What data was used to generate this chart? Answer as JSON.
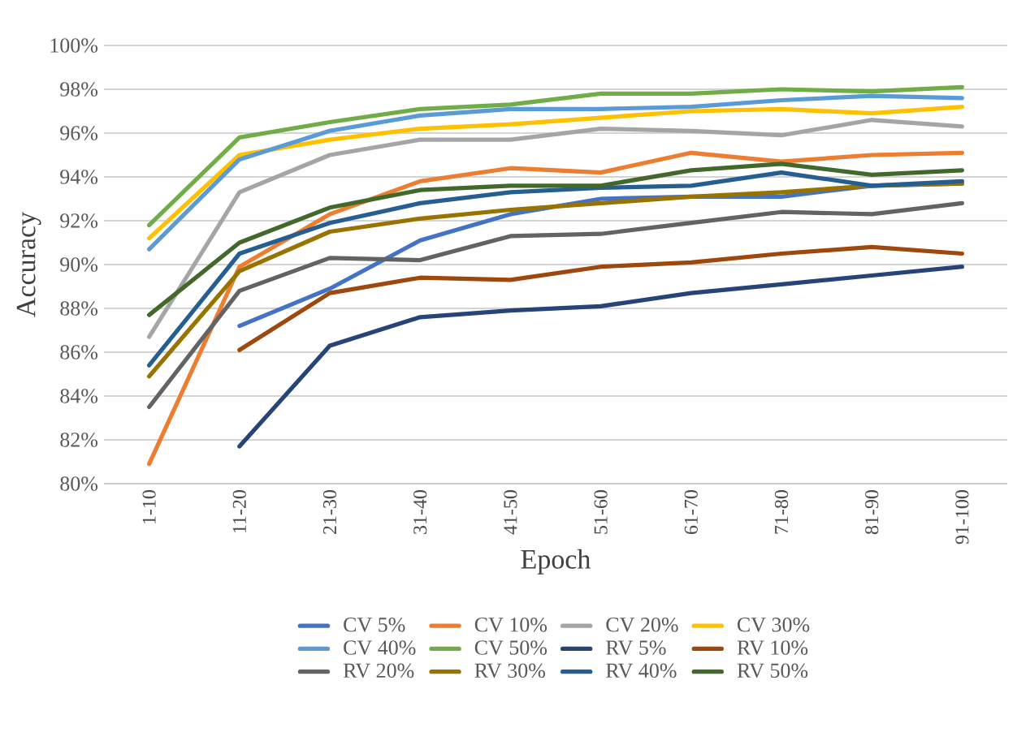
{
  "chart_data": {
    "type": "line",
    "xlabel": "Epoch",
    "ylabel": "Accuracy",
    "categories": [
      "1-10",
      "11-20",
      "21-30",
      "31-40",
      "41-50",
      "51-60",
      "61-70",
      "71-80",
      "81-90",
      "91-100"
    ],
    "ylim": [
      80,
      100
    ],
    "yticks": [
      {
        "value": 80,
        "label": "80%"
      },
      {
        "value": 82,
        "label": "82%"
      },
      {
        "value": 84,
        "label": "84%"
      },
      {
        "value": 86,
        "label": "86%"
      },
      {
        "value": 88,
        "label": "88%"
      },
      {
        "value": 90,
        "label": "90%"
      },
      {
        "value": 92,
        "label": "92%"
      },
      {
        "value": 94,
        "label": "94%"
      },
      {
        "value": 96,
        "label": "96%"
      },
      {
        "value": 98,
        "label": "98%"
      },
      {
        "value": 100,
        "label": "100%"
      }
    ],
    "grid": "y",
    "legend": "bottom",
    "marker": "none",
    "line_style": "solid",
    "series": [
      {
        "name": "CV 5%",
        "color": "#4472c4",
        "values": [
          null,
          87.2,
          88.9,
          91.1,
          92.3,
          93.0,
          93.1,
          93.1,
          93.6,
          93.7
        ]
      },
      {
        "name": "CV 10%",
        "color": "#ed7d31",
        "values": [
          80.9,
          89.9,
          92.3,
          93.8,
          94.4,
          94.2,
          95.1,
          94.7,
          95.0,
          95.1
        ]
      },
      {
        "name": "CV 20%",
        "color": "#a5a5a5",
        "values": [
          86.7,
          93.3,
          95.0,
          95.7,
          95.7,
          96.2,
          96.1,
          95.9,
          96.6,
          96.3
        ]
      },
      {
        "name": "CV 30%",
        "color": "#ffc000",
        "values": [
          91.2,
          95.0,
          95.7,
          96.2,
          96.4,
          96.7,
          97.0,
          97.1,
          96.9,
          97.2
        ]
      },
      {
        "name": "CV 40%",
        "color": "#5b9bd5",
        "values": [
          90.7,
          94.8,
          96.1,
          96.8,
          97.1,
          97.1,
          97.2,
          97.5,
          97.7,
          97.6
        ]
      },
      {
        "name": "CV 50%",
        "color": "#70ad47",
        "values": [
          91.8,
          95.8,
          96.5,
          97.1,
          97.3,
          97.8,
          97.8,
          98.0,
          97.9,
          98.1
        ]
      },
      {
        "name": "RV 5%",
        "color": "#264478",
        "values": [
          null,
          81.7,
          86.3,
          87.6,
          87.9,
          88.1,
          88.7,
          89.1,
          89.5,
          89.9
        ]
      },
      {
        "name": "RV 10%",
        "color": "#9e480e",
        "values": [
          null,
          86.1,
          88.7,
          89.4,
          89.3,
          89.9,
          90.1,
          90.5,
          90.8,
          90.5
        ]
      },
      {
        "name": "RV 20%",
        "color": "#636363",
        "values": [
          83.5,
          88.8,
          90.3,
          90.2,
          91.3,
          91.4,
          91.9,
          92.4,
          92.3,
          92.8
        ]
      },
      {
        "name": "RV 30%",
        "color": "#997300",
        "values": [
          84.9,
          89.7,
          91.5,
          92.1,
          92.5,
          92.8,
          93.1,
          93.3,
          93.6,
          93.7
        ]
      },
      {
        "name": "RV 40%",
        "color": "#255e91",
        "values": [
          85.4,
          90.5,
          91.9,
          92.8,
          93.3,
          93.5,
          93.6,
          94.2,
          93.6,
          93.8
        ]
      },
      {
        "name": "RV 50%",
        "color": "#43682b",
        "values": [
          87.7,
          91.0,
          92.6,
          93.4,
          93.6,
          93.6,
          94.3,
          94.6,
          94.1,
          94.3
        ]
      }
    ]
  }
}
